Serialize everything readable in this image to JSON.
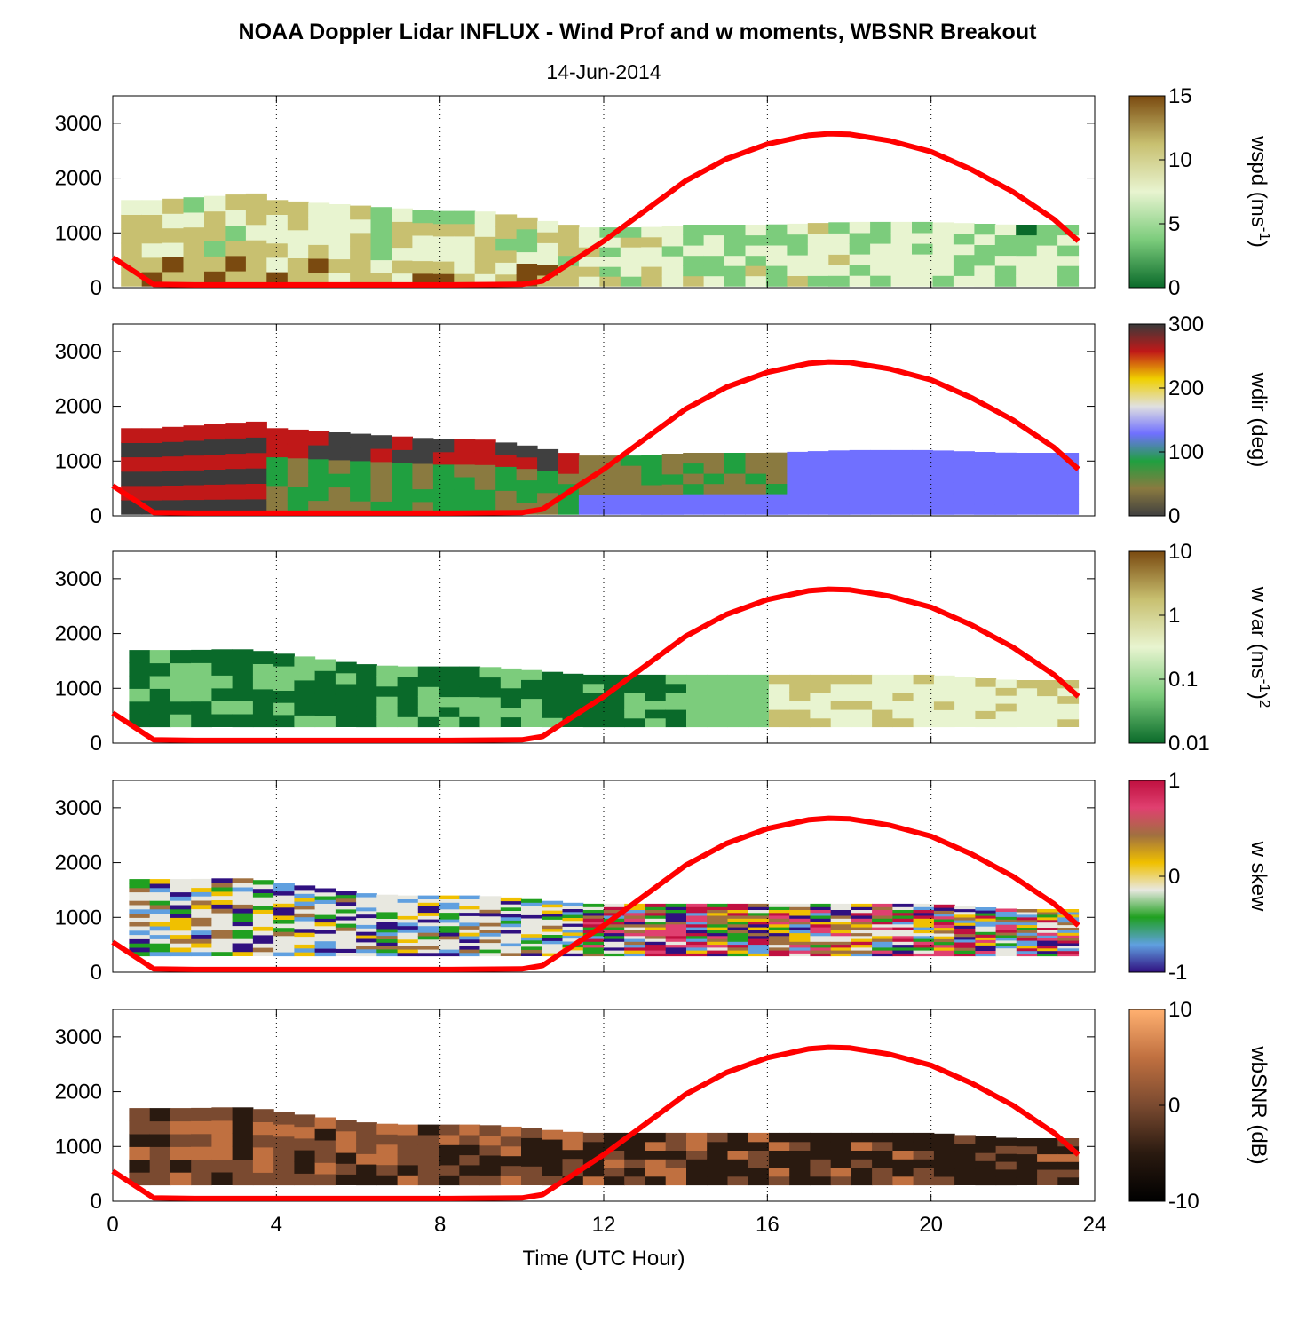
{
  "title": "NOAA Doppler Lidar INFLUX - Wind Prof and w moments, WBSNR Breakout",
  "subtitle": "14-Jun-2014",
  "xlabel": "Time (UTC Hour)",
  "chart_data": {
    "type": "heatmap",
    "x": {
      "label": "Time (UTC Hour)",
      "range": [
        0,
        24
      ],
      "ticks": [
        0,
        4,
        8,
        12,
        16,
        20,
        24
      ],
      "gridlines": [
        4,
        8,
        12,
        16,
        20,
        24
      ],
      "grid": "dotted vertical"
    },
    "y": {
      "range": [
        0,
        3500
      ],
      "ticks": [
        0,
        1000,
        2000,
        3000
      ]
    },
    "overlay_line": {
      "color": "#ff0000",
      "x": [
        0,
        1,
        2,
        4,
        8,
        10,
        10.5,
        12,
        13,
        14,
        15,
        16,
        17,
        17.5,
        18,
        19,
        20,
        21,
        22,
        23,
        23.6
      ],
      "y": [
        550,
        60,
        50,
        50,
        50,
        60,
        120,
        850,
        1400,
        1950,
        2350,
        2620,
        2780,
        2810,
        2800,
        2680,
        2480,
        2150,
        1750,
        1250,
        850
      ]
    },
    "panels": [
      {
        "name": "wspd",
        "colorbar_label": "wspd (ms",
        "colorbar_label_sup": "-1",
        "colorbar_label_tail": ")",
        "colorbar_ticks": [
          "15",
          "10",
          "5",
          "0"
        ],
        "colors": [
          "#7a4a10",
          "#c8c070",
          "#e8f4d0",
          "#7ccc7c",
          "#0a6a2a"
        ],
        "top_x": [
          0.2,
          1,
          2,
          3,
          3.5,
          4,
          5,
          6,
          7,
          8,
          9,
          10,
          11.5,
          13,
          14,
          16,
          18,
          20,
          22,
          23.6
        ],
        "top_y": [
          1600,
          1600,
          1650,
          1700,
          1720,
          1600,
          1550,
          1500,
          1450,
          1400,
          1400,
          1300,
          1100,
          1100,
          1150,
          1150,
          1200,
          1200,
          1150,
          1150
        ],
        "bottom": 30
      },
      {
        "name": "wdir",
        "colorbar_label": "wdir (deg)",
        "colorbar_ticks": [
          "300",
          "200",
          "100",
          "0"
        ],
        "colors": [
          "#3a3a3a",
          "#c01818",
          "#f0d000",
          "#e0e0e0",
          "#7070ff",
          "#20a040",
          "#8a7a40",
          "#404040"
        ],
        "top_x": [
          0.2,
          1,
          2,
          3,
          3.5,
          4,
          5,
          6,
          7,
          8,
          9,
          10,
          11.5,
          13,
          14,
          16,
          18,
          20,
          22,
          23.6
        ],
        "top_y": [
          1600,
          1600,
          1650,
          1700,
          1720,
          1600,
          1550,
          1500,
          1450,
          1400,
          1400,
          1300,
          1100,
          1100,
          1150,
          1150,
          1200,
          1200,
          1150,
          1150
        ],
        "bottom": 30
      },
      {
        "name": "w var",
        "colorbar_label": "w var (ms",
        "colorbar_label_sup": "-1",
        "colorbar_label_tail": ")",
        "colorbar_label_sup2": "2",
        "colorbar_ticks": [
          "10",
          "1",
          "0.1",
          "0.01"
        ],
        "colors": [
          "#7a4a10",
          "#c8c070",
          "#e8f4d0",
          "#7ccc7c",
          "#0a6a2a"
        ],
        "top_x": [
          0.4,
          1,
          2,
          3,
          3.5,
          4,
          5,
          6,
          7,
          8,
          9,
          10,
          11.5,
          13,
          14,
          16,
          18,
          20,
          22,
          23.6
        ],
        "top_y": [
          1700,
          1700,
          1700,
          1720,
          1700,
          1650,
          1550,
          1450,
          1400,
          1400,
          1400,
          1350,
          1250,
          1250,
          1250,
          1250,
          1250,
          1250,
          1150,
          1150
        ],
        "bottom": 300
      },
      {
        "name": "w skew",
        "colorbar_label": "w skew",
        "colorbar_ticks": [
          "1",
          "0",
          "-1"
        ],
        "colors": [
          "#c01040",
          "#e04070",
          "#a07040",
          "#f0c000",
          "#e8e8e0",
          "#20a020",
          "#60a0e0",
          "#301080"
        ],
        "top_x": [
          0.4,
          1,
          2,
          3,
          3.5,
          4,
          5,
          6,
          7,
          8,
          9,
          10,
          11.5,
          13,
          14,
          16,
          18,
          20,
          22,
          23.6
        ],
        "top_y": [
          1700,
          1700,
          1700,
          1720,
          1700,
          1650,
          1550,
          1450,
          1400,
          1400,
          1400,
          1350,
          1250,
          1250,
          1250,
          1250,
          1250,
          1250,
          1150,
          1150
        ],
        "bottom": 300
      },
      {
        "name": "wbSNR",
        "colorbar_label": "wbSNR (dB)",
        "colorbar_ticks": [
          "10",
          "0",
          "-10"
        ],
        "colors": [
          "#ffb070",
          "#c07040",
          "#7a4a30",
          "#2a1a10",
          "#000000"
        ],
        "top_x": [
          0.4,
          1,
          2,
          3,
          3.5,
          4,
          5,
          6,
          7,
          8,
          9,
          10,
          11.5,
          13,
          14,
          16,
          18,
          20,
          22,
          23.6
        ],
        "top_y": [
          1700,
          1700,
          1700,
          1720,
          1700,
          1650,
          1550,
          1450,
          1400,
          1400,
          1400,
          1350,
          1250,
          1250,
          1250,
          1250,
          1250,
          1250,
          1150,
          1150
        ],
        "bottom": 300
      }
    ]
  }
}
